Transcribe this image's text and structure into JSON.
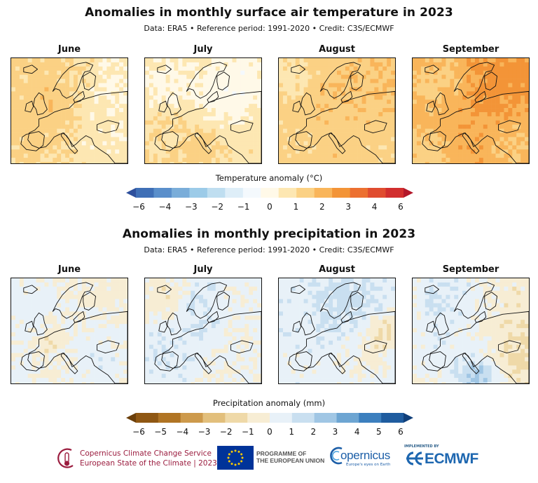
{
  "chart_data": [
    {
      "type": "heatmap",
      "title": "Anomalies in monthly surface air temperature in 2023",
      "subtitle": "Data: ERA5 • Reference period: 1991-2020 • Credit: C3S/ECMWF",
      "panels": [
        {
          "label": "June",
          "dominant_anomaly": 1.5
        },
        {
          "label": "July",
          "dominant_anomaly": 0.8
        },
        {
          "label": "August",
          "dominant_anomaly": 1.8
        },
        {
          "label": "September",
          "dominant_anomaly": 3.0
        }
      ],
      "colorbar": {
        "label": "Temperature anomaly (°C)",
        "ticks": [
          "−6",
          "−4",
          "−3",
          "−2",
          "−1",
          "0",
          "1",
          "2",
          "3",
          "4",
          "6"
        ],
        "colors": [
          "#2d4f9c",
          "#3f6fb6",
          "#5a8fcb",
          "#7aadd9",
          "#9ccbe8",
          "#bfdef0",
          "#deeef8",
          "#f4f9fd",
          "#fff9e8",
          "#fde7b2",
          "#fbd184",
          "#f9b55a",
          "#f39437",
          "#ec7030",
          "#e04c2f",
          "#d22e2e",
          "#b3172a"
        ]
      }
    },
    {
      "type": "heatmap",
      "title": "Anomalies in monthly precipitation in 2023",
      "subtitle": "Data: ERA5 • Reference period: 1991-2020 • Credit: C3S/ECMWF",
      "panels": [
        {
          "label": "June",
          "dominant_anomaly": 0.0
        },
        {
          "label": "July",
          "dominant_anomaly": 0.3
        },
        {
          "label": "August",
          "dominant_anomaly": 0.6
        },
        {
          "label": "September",
          "dominant_anomaly": -0.4
        }
      ],
      "colorbar": {
        "label": "Precipitation anomaly (mm)",
        "ticks": [
          "−6",
          "−5",
          "−4",
          "−3",
          "−2",
          "−1",
          "0",
          "1",
          "2",
          "3",
          "4",
          "5",
          "6"
        ],
        "colors": [
          "#6b3f0a",
          "#8f5713",
          "#b07424",
          "#cd9a4c",
          "#e2bf7c",
          "#efd9a8",
          "#f7edd4",
          "#e8f1f8",
          "#c9dff0",
          "#a0c6e4",
          "#6da5d2",
          "#3c7fbe",
          "#1f5c9f",
          "#103f7a"
        ]
      }
    }
  ],
  "footer": {
    "c3s_line1": "Copernicus Climate Change Service",
    "c3s_line2": "European State of the Climate | 2023",
    "programme_line1": "PROGRAMME OF",
    "programme_line2": "THE EUROPEAN UNION",
    "copernicus": "opernicus",
    "copernicus_sub": "Europe's eyes on Earth",
    "ecmwf_implemented": "IMPLEMENTED BY",
    "ecmwf": "ECMWF",
    "accent_c3s": "#9b1d3f",
    "accent_copernicus": "#1d5fa8",
    "accent_ecmwf": "#1e67b0",
    "eu_blue": "#003399",
    "eu_star": "#ffcc00"
  }
}
